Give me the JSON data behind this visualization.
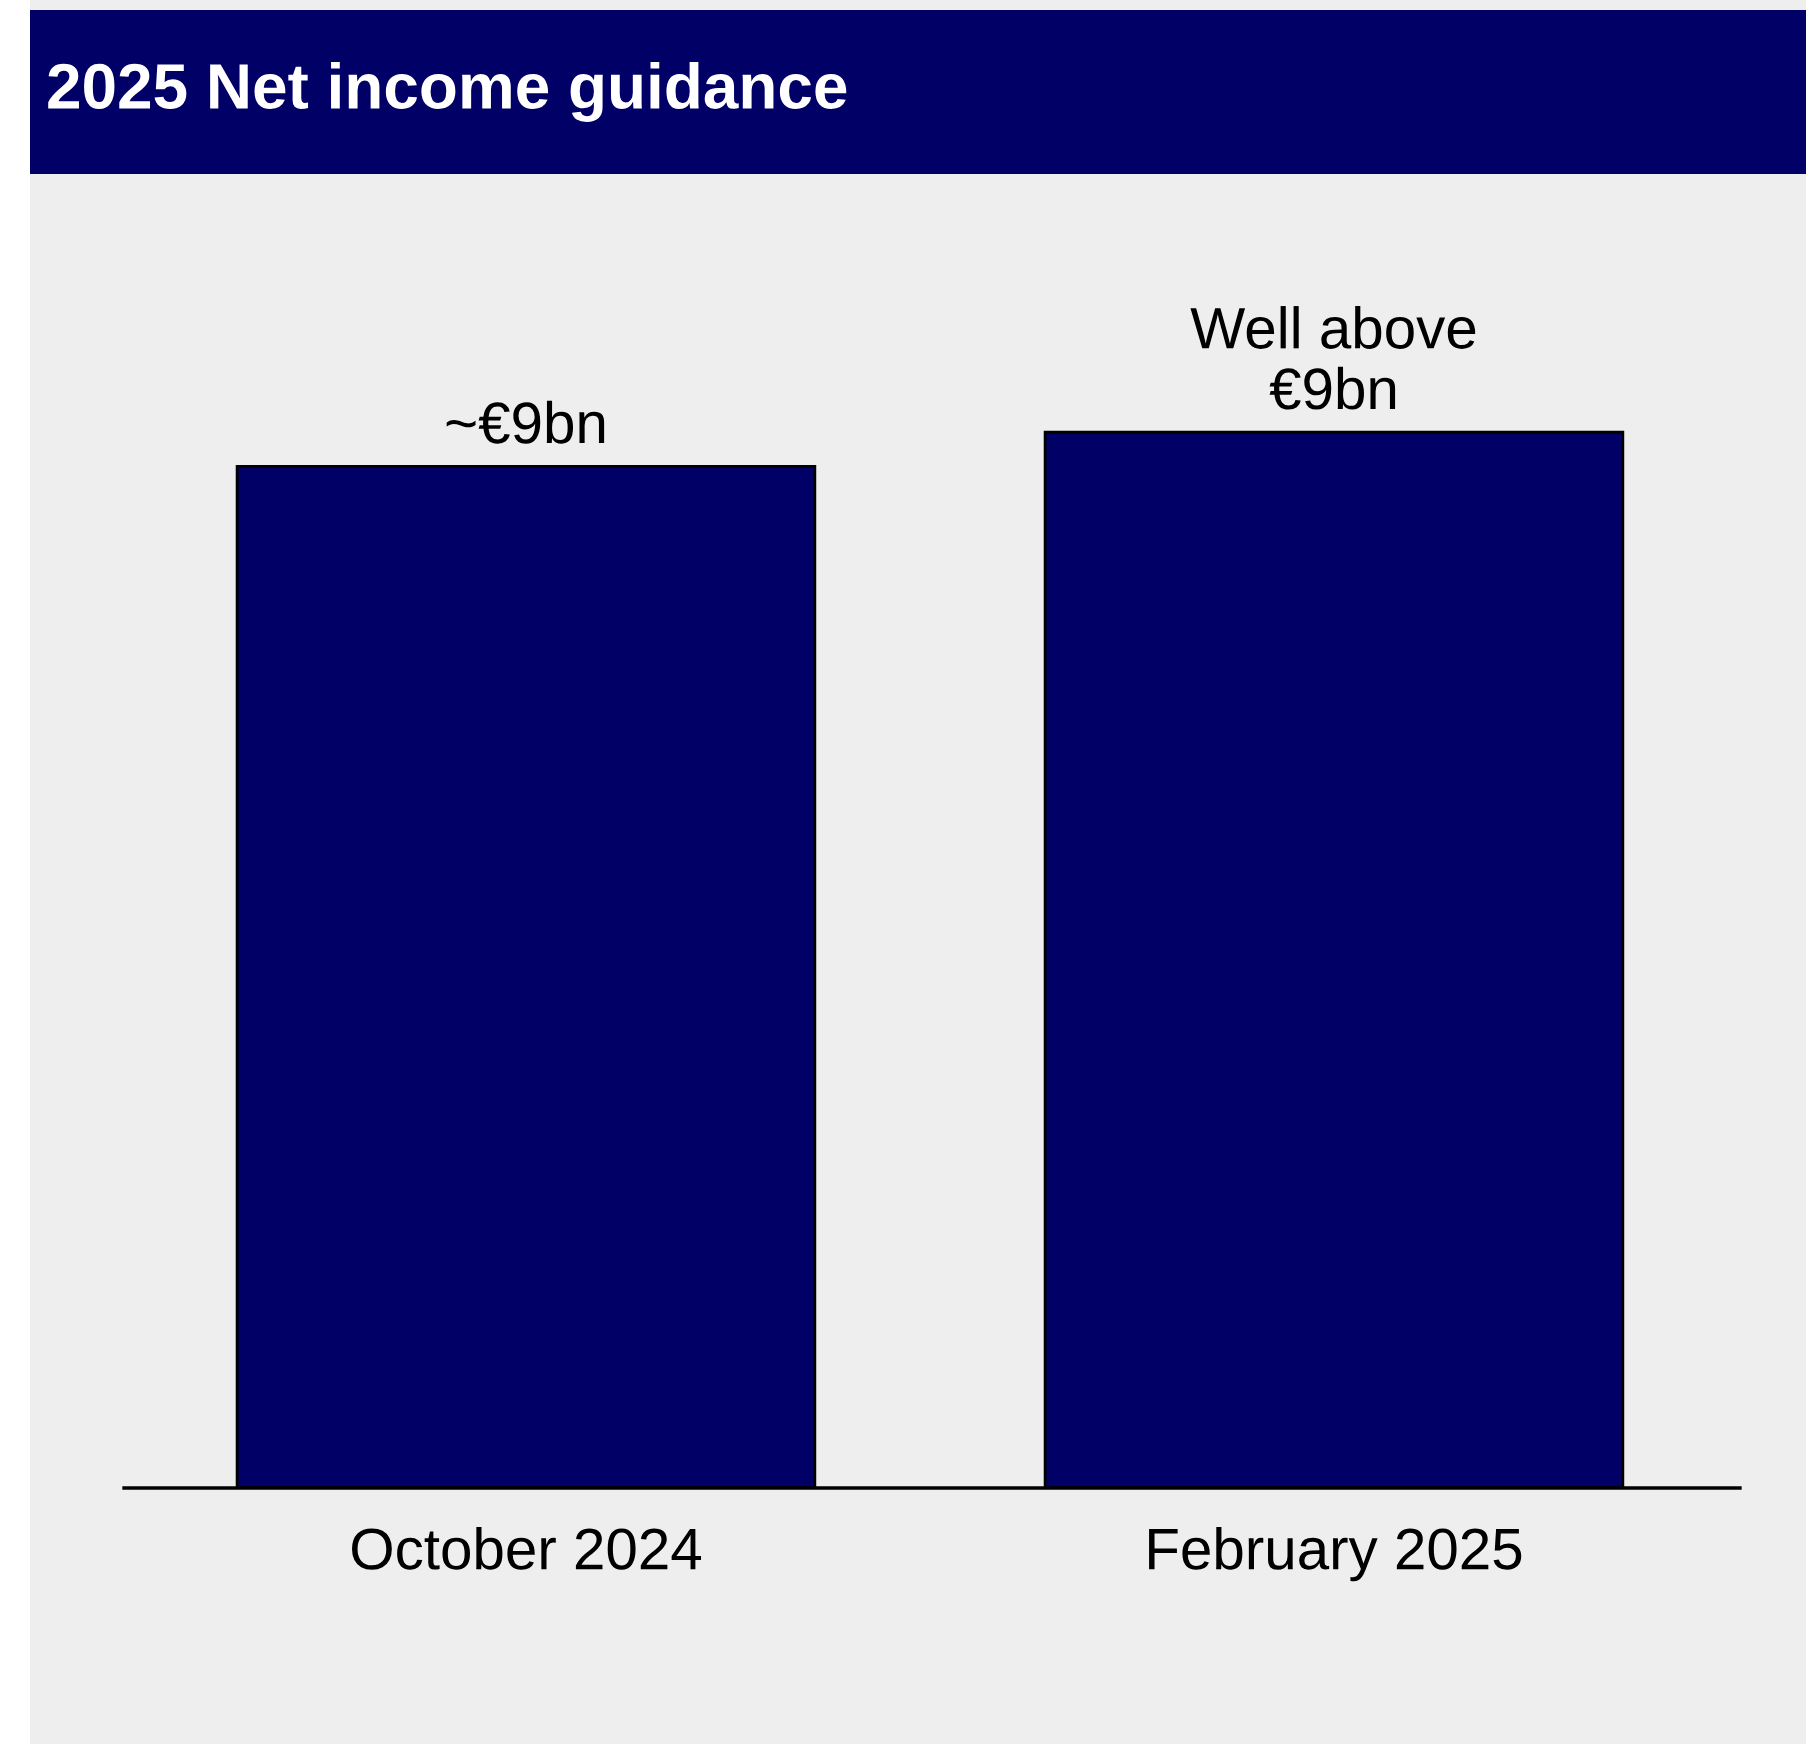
{
  "chart_data": {
    "type": "bar",
    "title": "2025 Net income guidance",
    "categories": [
      "October 2024",
      "February 2025"
    ],
    "values": [
      9,
      9.3
    ],
    "value_labels": [
      "~€9bn",
      "Well above\n€9bn"
    ],
    "color": "#000066",
    "grid": false,
    "legend": false
  }
}
